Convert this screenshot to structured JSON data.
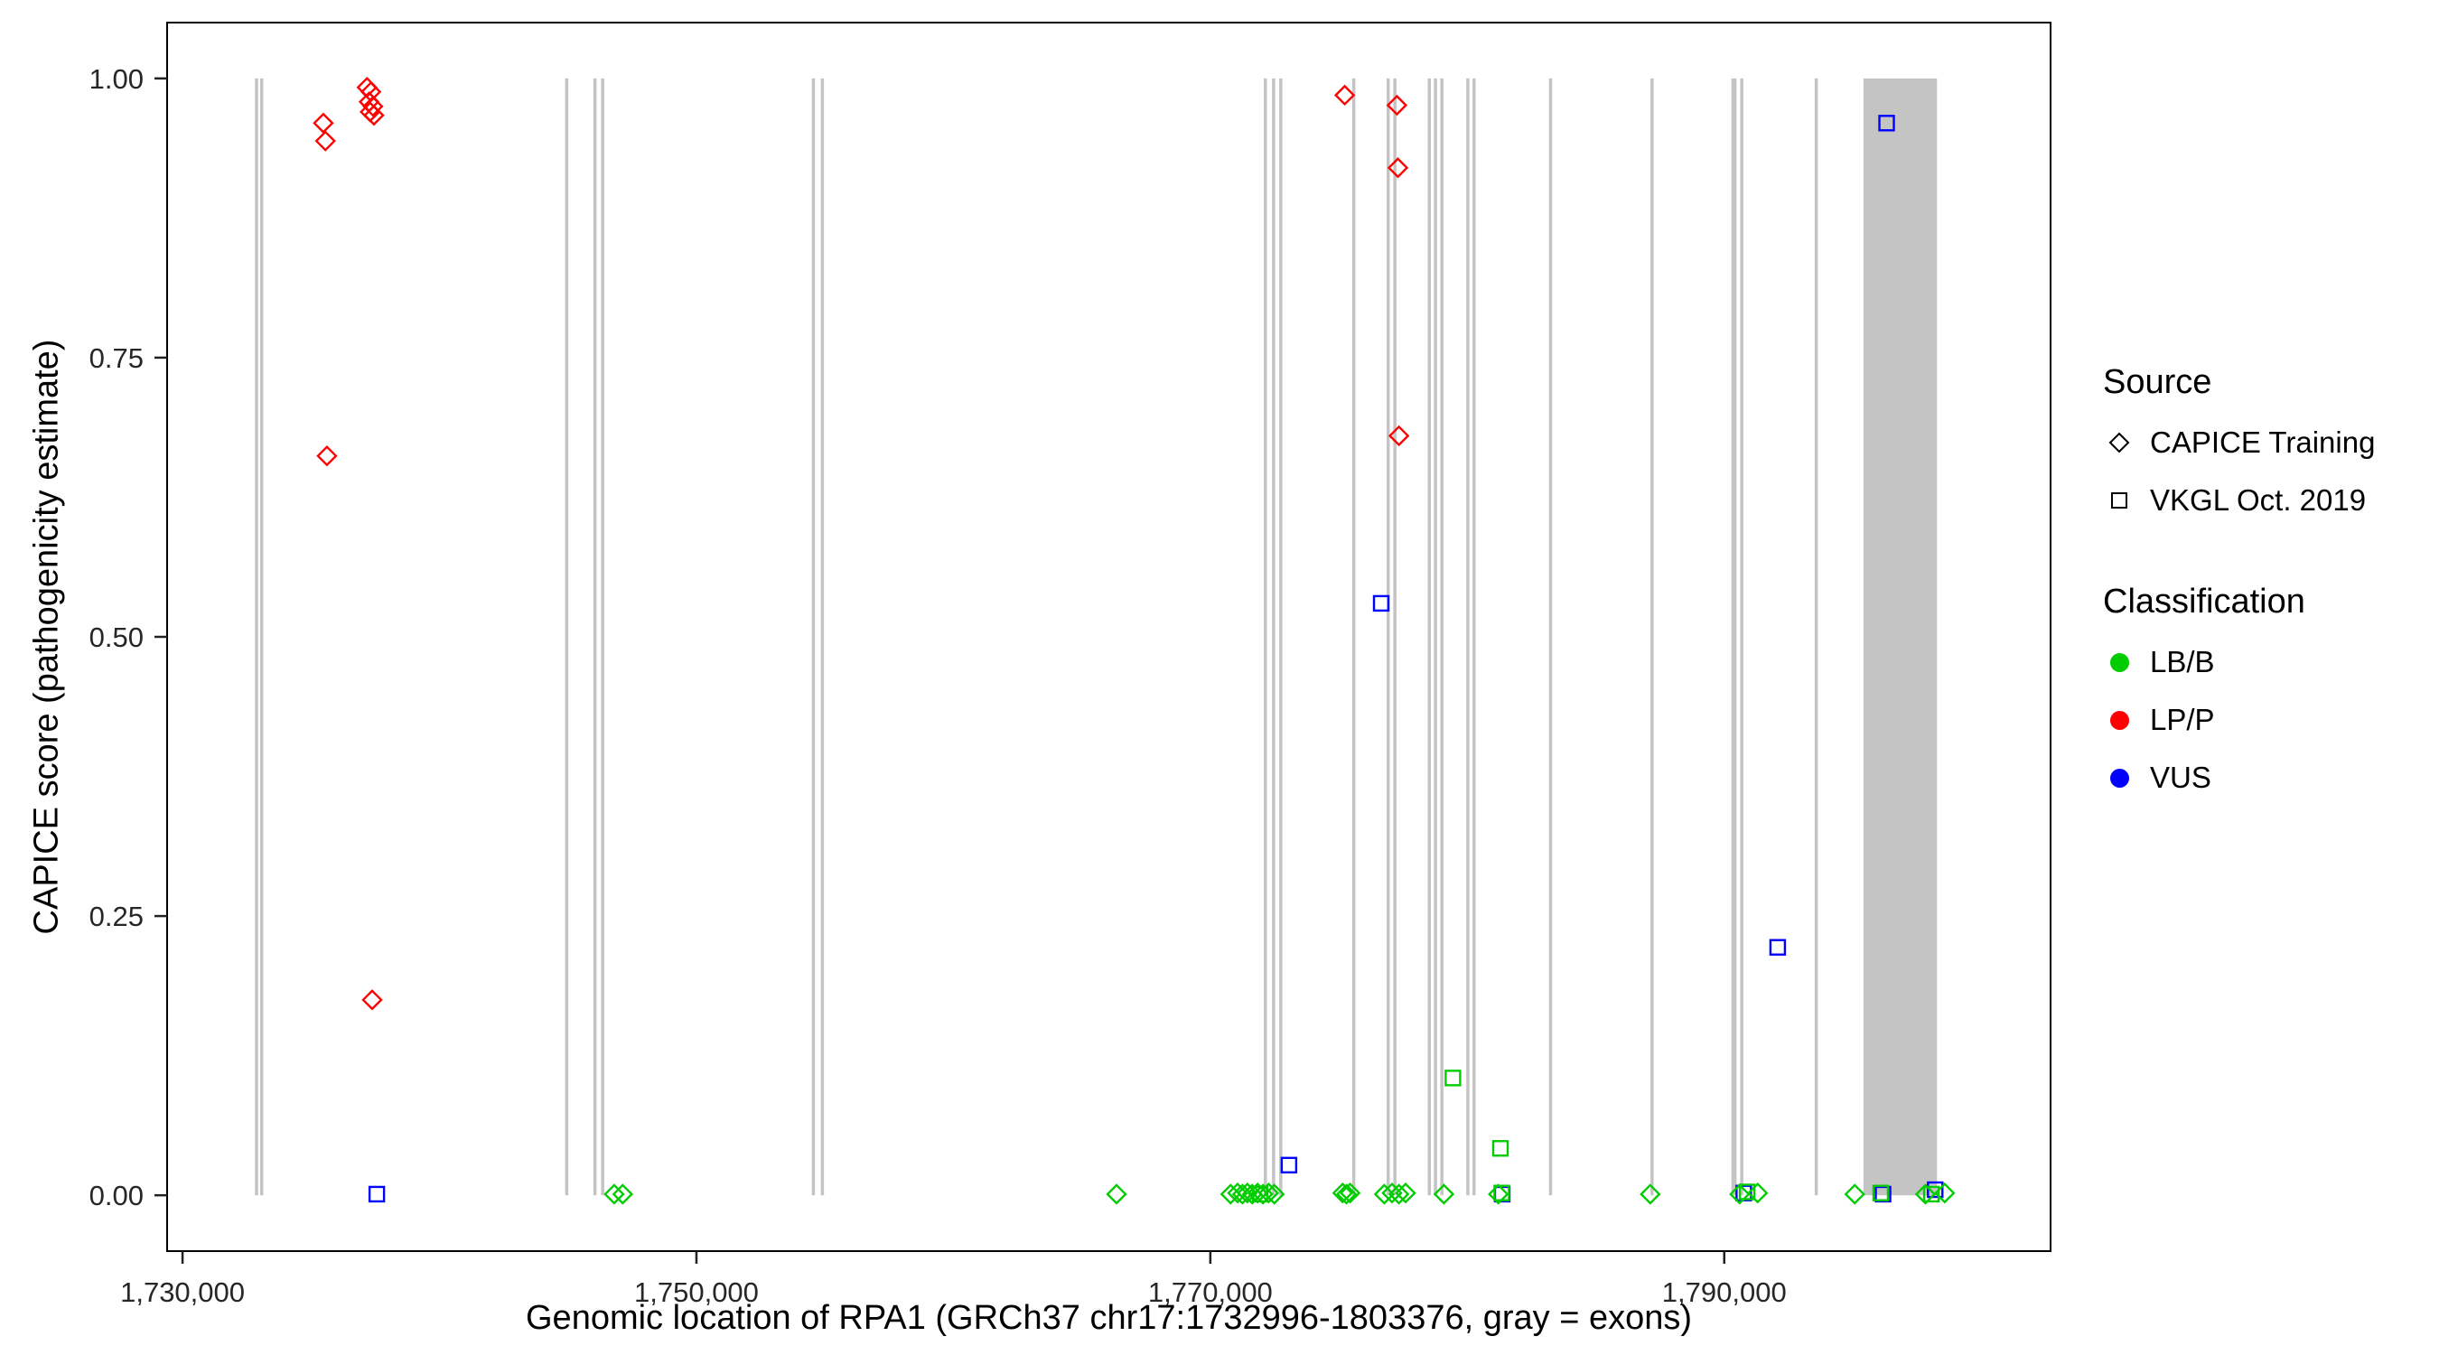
{
  "legend": {
    "source": {
      "title": "Source",
      "items": [
        {
          "label": "CAPICE Training",
          "shape": "diamond"
        },
        {
          "label": "VKGL Oct. 2019",
          "shape": "square"
        }
      ]
    },
    "classification": {
      "title": "Classification",
      "items": [
        {
          "label": "LB/B",
          "color_key": "LB/B"
        },
        {
          "label": "LP/P",
          "color_key": "LP/P"
        },
        {
          "label": "VUS",
          "color_key": "VUS"
        }
      ]
    }
  },
  "chart_data": {
    "type": "scatter",
    "title": "",
    "xlabel": "Genomic location of RPA1 (GRCh37 chr17:1732996-1803376, gray = exons)",
    "ylabel": "CAPICE score (pathogenicity estimate)",
    "xlim": [
      1729400,
      1802700
    ],
    "ylim": [
      -0.05,
      1.05
    ],
    "grid": false,
    "legend_position": "right",
    "x_ticks": [
      {
        "value": 1730000,
        "label": "1,730,000"
      },
      {
        "value": 1750000,
        "label": "1,750,000"
      },
      {
        "value": 1770000,
        "label": "1,770,000"
      },
      {
        "value": 1790000,
        "label": "1,790,000"
      }
    ],
    "y_ticks": [
      {
        "value": 0.0,
        "label": "0.00"
      },
      {
        "value": 0.25,
        "label": "0.25"
      },
      {
        "value": 0.5,
        "label": "0.50"
      },
      {
        "value": 0.75,
        "label": "0.75"
      },
      {
        "value": 1.0,
        "label": "1.00"
      }
    ],
    "colors": {
      "LB/B": "#00CC00",
      "LP/P": "#FF0000",
      "VUS": "#0000FF",
      "exon": "#C4C4C4",
      "panel_border": "#000000"
    },
    "shape_by_source": {
      "CAPICE Training": "diamond",
      "VKGL Oct. 2019": "square"
    },
    "exons": [
      {
        "start": 1732820,
        "end": 1732920
      },
      {
        "start": 1733020,
        "end": 1733120
      },
      {
        "start": 1744890,
        "end": 1744990
      },
      {
        "start": 1745990,
        "end": 1746090
      },
      {
        "start": 1746290,
        "end": 1746390
      },
      {
        "start": 1754490,
        "end": 1754590
      },
      {
        "start": 1754840,
        "end": 1754940
      },
      {
        "start": 1772080,
        "end": 1772180
      },
      {
        "start": 1772400,
        "end": 1772500
      },
      {
        "start": 1772680,
        "end": 1772780
      },
      {
        "start": 1775520,
        "end": 1775620
      },
      {
        "start": 1776860,
        "end": 1776960
      },
      {
        "start": 1777120,
        "end": 1777220
      },
      {
        "start": 1778460,
        "end": 1778560
      },
      {
        "start": 1778700,
        "end": 1778800
      },
      {
        "start": 1778950,
        "end": 1779050
      },
      {
        "start": 1779960,
        "end": 1780060
      },
      {
        "start": 1780200,
        "end": 1780300
      },
      {
        "start": 1783180,
        "end": 1783280
      },
      {
        "start": 1787130,
        "end": 1787230
      },
      {
        "start": 1790280,
        "end": 1790480
      },
      {
        "start": 1790620,
        "end": 1790720
      },
      {
        "start": 1793520,
        "end": 1793620
      },
      {
        "start": 1795420,
        "end": 1798280
      }
    ],
    "points": [
      {
        "x": 1735480,
        "y": 0.96,
        "source": "CAPICE Training",
        "class": "LP/P"
      },
      {
        "x": 1735560,
        "y": 0.944,
        "source": "CAPICE Training",
        "class": "LP/P"
      },
      {
        "x": 1735620,
        "y": 0.662,
        "source": "CAPICE Training",
        "class": "LP/P"
      },
      {
        "x": 1737180,
        "y": 0.992,
        "source": "CAPICE Training",
        "class": "LP/P"
      },
      {
        "x": 1737330,
        "y": 0.988,
        "source": "CAPICE Training",
        "class": "LP/P"
      },
      {
        "x": 1737260,
        "y": 0.979,
        "source": "CAPICE Training",
        "class": "LP/P"
      },
      {
        "x": 1737410,
        "y": 0.975,
        "source": "CAPICE Training",
        "class": "LP/P"
      },
      {
        "x": 1737300,
        "y": 0.97,
        "source": "CAPICE Training",
        "class": "LP/P"
      },
      {
        "x": 1737450,
        "y": 0.967,
        "source": "CAPICE Training",
        "class": "LP/P"
      },
      {
        "x": 1737380,
        "y": 0.175,
        "source": "CAPICE Training",
        "class": "LP/P"
      },
      {
        "x": 1775230,
        "y": 0.985,
        "source": "CAPICE Training",
        "class": "LP/P"
      },
      {
        "x": 1777260,
        "y": 0.976,
        "source": "CAPICE Training",
        "class": "LP/P"
      },
      {
        "x": 1777300,
        "y": 0.92,
        "source": "CAPICE Training",
        "class": "LP/P"
      },
      {
        "x": 1777340,
        "y": 0.68,
        "source": "CAPICE Training",
        "class": "LP/P"
      },
      {
        "x": 1776650,
        "y": 0.53,
        "source": "VKGL Oct. 2019",
        "class": "VUS"
      },
      {
        "x": 1796320,
        "y": 0.96,
        "source": "VKGL Oct. 2019",
        "class": "VUS"
      },
      {
        "x": 1792080,
        "y": 0.222,
        "source": "VKGL Oct. 2019",
        "class": "VUS"
      },
      {
        "x": 1737560,
        "y": 0.001,
        "source": "VKGL Oct. 2019",
        "class": "VUS"
      },
      {
        "x": 1773060,
        "y": 0.027,
        "source": "VKGL Oct. 2019",
        "class": "VUS"
      },
      {
        "x": 1790760,
        "y": 0.002,
        "source": "VKGL Oct. 2019",
        "class": "VUS"
      },
      {
        "x": 1796180,
        "y": 0.001,
        "source": "VKGL Oct. 2019",
        "class": "VUS"
      },
      {
        "x": 1798210,
        "y": 0.005,
        "source": "VKGL Oct. 2019",
        "class": "VUS"
      },
      {
        "x": 1781360,
        "y": 0.001,
        "source": "VKGL Oct. 2019",
        "class": "VUS"
      },
      {
        "x": 1779440,
        "y": 0.105,
        "source": "VKGL Oct. 2019",
        "class": "LB/B"
      },
      {
        "x": 1781290,
        "y": 0.042,
        "source": "VKGL Oct. 2019",
        "class": "LB/B"
      },
      {
        "x": 1771940,
        "y": 0.001,
        "source": "VKGL Oct. 2019",
        "class": "LB/B"
      },
      {
        "x": 1781340,
        "y": 0.002,
        "source": "VKGL Oct. 2019",
        "class": "LB/B"
      },
      {
        "x": 1790890,
        "y": 0.003,
        "source": "VKGL Oct. 2019",
        "class": "LB/B"
      },
      {
        "x": 1796090,
        "y": 0.002,
        "source": "VKGL Oct. 2019",
        "class": "LB/B"
      },
      {
        "x": 1798060,
        "y": 0.001,
        "source": "VKGL Oct. 2019",
        "class": "LB/B"
      },
      {
        "x": 1746800,
        "y": 0.001,
        "source": "CAPICE Training",
        "class": "LB/B"
      },
      {
        "x": 1747130,
        "y": 0.001,
        "source": "CAPICE Training",
        "class": "LB/B"
      },
      {
        "x": 1766350,
        "y": 0.001,
        "source": "CAPICE Training",
        "class": "LB/B"
      },
      {
        "x": 1770790,
        "y": 0.001,
        "source": "CAPICE Training",
        "class": "LB/B"
      },
      {
        "x": 1771060,
        "y": 0.002,
        "source": "CAPICE Training",
        "class": "LB/B"
      },
      {
        "x": 1771250,
        "y": 0.001,
        "source": "CAPICE Training",
        "class": "LB/B"
      },
      {
        "x": 1771440,
        "y": 0.002,
        "source": "CAPICE Training",
        "class": "LB/B"
      },
      {
        "x": 1771630,
        "y": 0.001,
        "source": "CAPICE Training",
        "class": "LB/B"
      },
      {
        "x": 1771840,
        "y": 0.002,
        "source": "CAPICE Training",
        "class": "LB/B"
      },
      {
        "x": 1772050,
        "y": 0.001,
        "source": "CAPICE Training",
        "class": "LB/B"
      },
      {
        "x": 1772270,
        "y": 0.002,
        "source": "CAPICE Training",
        "class": "LB/B"
      },
      {
        "x": 1772490,
        "y": 0.001,
        "source": "CAPICE Training",
        "class": "LB/B"
      },
      {
        "x": 1775150,
        "y": 0.002,
        "source": "CAPICE Training",
        "class": "LB/B"
      },
      {
        "x": 1775300,
        "y": 0.001,
        "source": "CAPICE Training",
        "class": "LB/B"
      },
      {
        "x": 1775440,
        "y": 0.002,
        "source": "CAPICE Training",
        "class": "LB/B"
      },
      {
        "x": 1776770,
        "y": 0.001,
        "source": "CAPICE Training",
        "class": "LB/B"
      },
      {
        "x": 1777070,
        "y": 0.002,
        "source": "CAPICE Training",
        "class": "LB/B"
      },
      {
        "x": 1777340,
        "y": 0.001,
        "source": "CAPICE Training",
        "class": "LB/B"
      },
      {
        "x": 1777600,
        "y": 0.002,
        "source": "CAPICE Training",
        "class": "LB/B"
      },
      {
        "x": 1779090,
        "y": 0.001,
        "source": "CAPICE Training",
        "class": "LB/B"
      },
      {
        "x": 1781210,
        "y": 0.001,
        "source": "CAPICE Training",
        "class": "LB/B"
      },
      {
        "x": 1787120,
        "y": 0.001,
        "source": "CAPICE Training",
        "class": "LB/B"
      },
      {
        "x": 1790600,
        "y": 0.001,
        "source": "CAPICE Training",
        "class": "LB/B"
      },
      {
        "x": 1791300,
        "y": 0.002,
        "source": "CAPICE Training",
        "class": "LB/B"
      },
      {
        "x": 1795080,
        "y": 0.001,
        "source": "CAPICE Training",
        "class": "LB/B"
      },
      {
        "x": 1797830,
        "y": 0.001,
        "source": "CAPICE Training",
        "class": "LB/B"
      },
      {
        "x": 1798580,
        "y": 0.002,
        "source": "CAPICE Training",
        "class": "LB/B"
      }
    ]
  }
}
